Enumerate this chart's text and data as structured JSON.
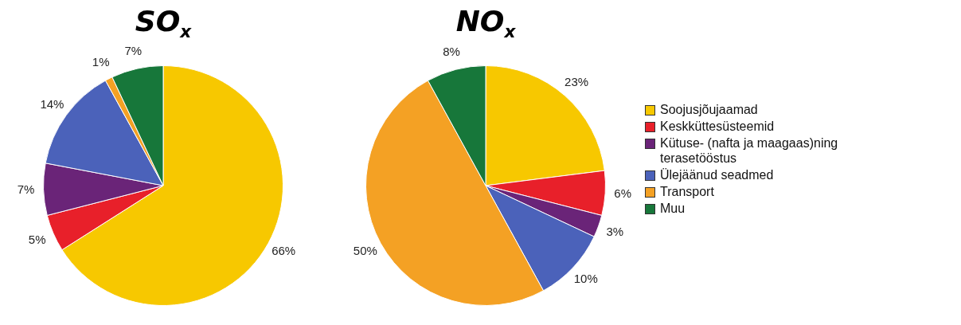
{
  "chart_data": [
    {
      "type": "pie",
      "title": "SO$_{x}$",
      "values": [
        66,
        5,
        7,
        14,
        1,
        7
      ],
      "value_labels": [
        "66%",
        "5%",
        "7%",
        "14%",
        "1%",
        "7%"
      ],
      "colors": [
        "#f7c800",
        "#e8202a",
        "#6a2478",
        "#4b62ba",
        "#f4a124",
        "#17773a"
      ],
      "legend": false
    },
    {
      "type": "pie",
      "title": "NO$_{x}$",
      "categories": [
        "Soojusjõujaamad",
        "Keskküttesüsteemid",
        "Kütuse- (nafta ja maagaas)ning terasetööstus",
        "Ülejäänud seadmed",
        "Transport",
        "Muu"
      ],
      "values": [
        23,
        6,
        3,
        10,
        50,
        8
      ],
      "value_labels": [
        "23%",
        "6%",
        "3%",
        "10%",
        "50%",
        "8%"
      ],
      "colors": [
        "#f7c800",
        "#e8202a",
        "#6a2478",
        "#4b62ba",
        "#f4a124",
        "#17773a"
      ],
      "legend": "right"
    }
  ]
}
